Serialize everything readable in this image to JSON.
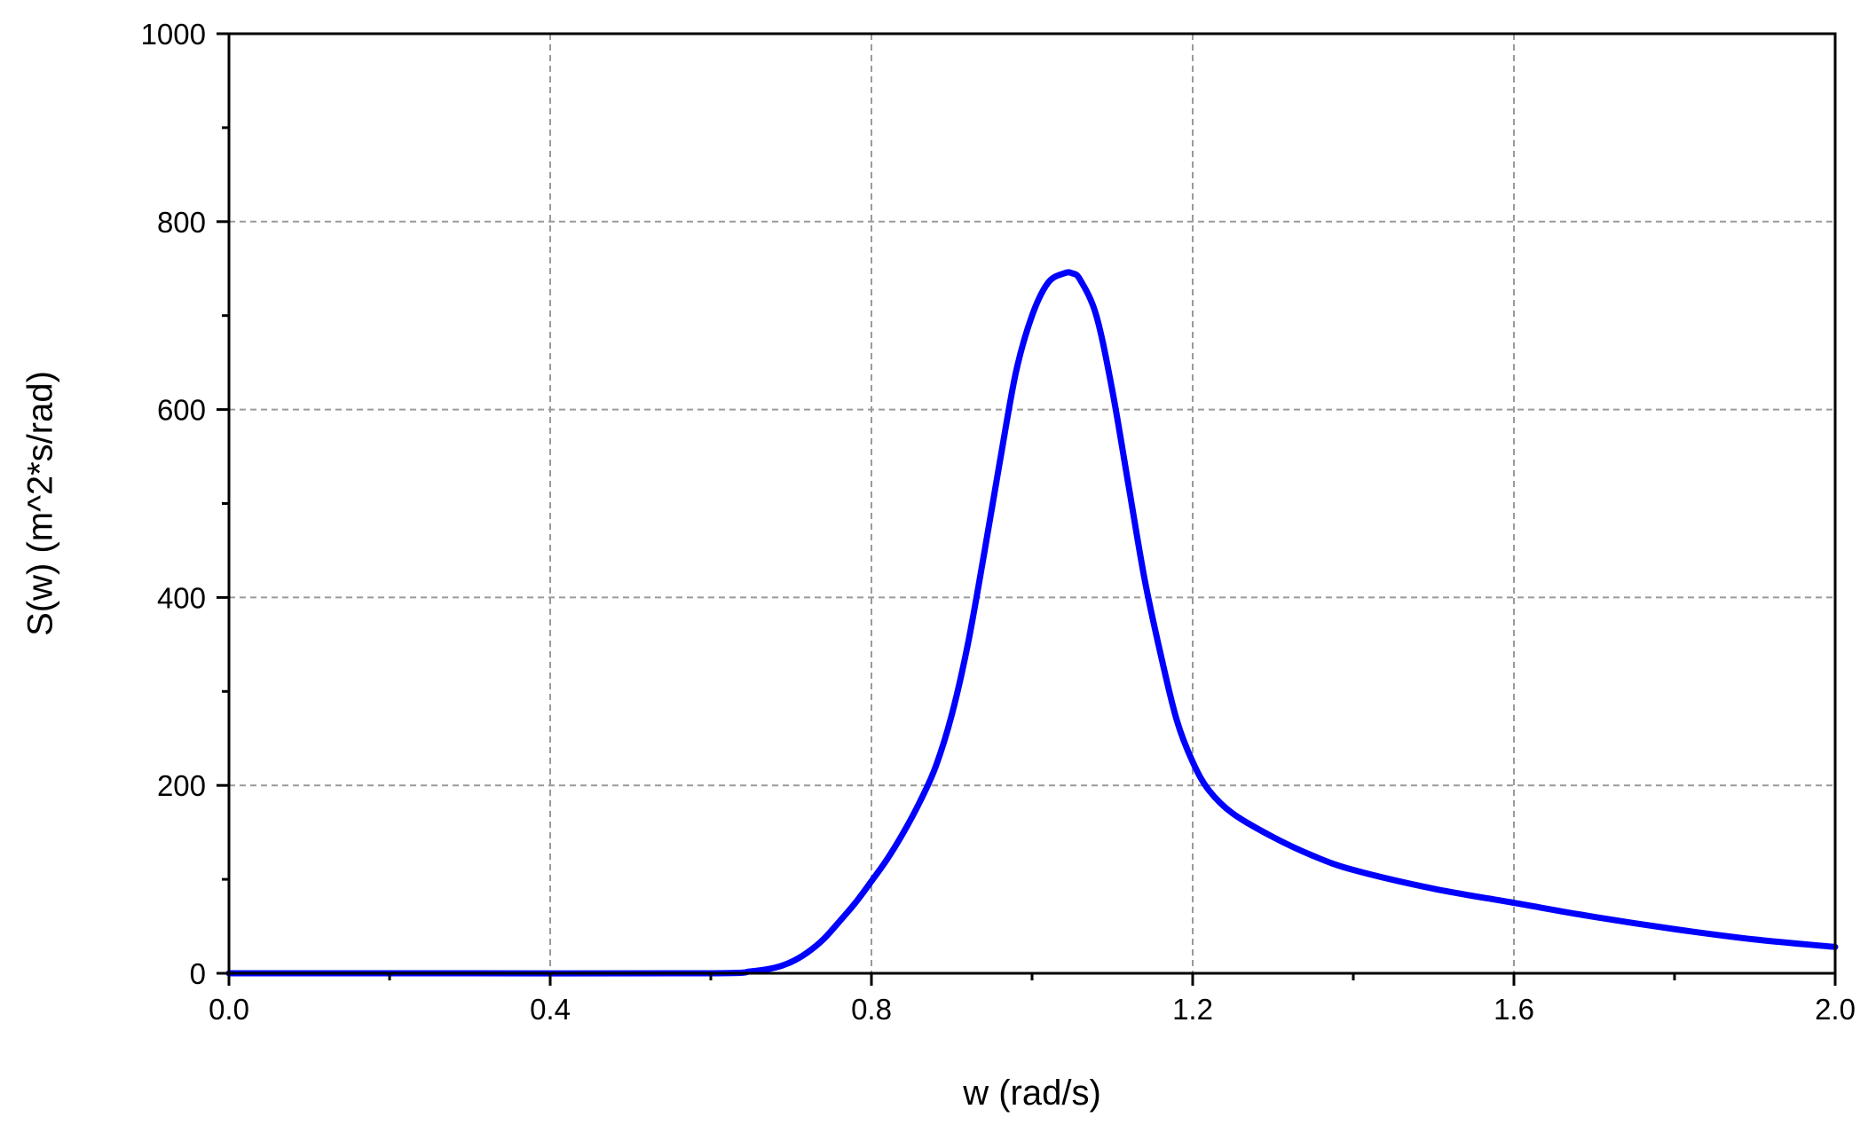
{
  "chart_data": {
    "type": "line",
    "title": "",
    "xlabel": "w (rad/s)",
    "ylabel": "S(w) (m^2*s/rad)",
    "xlim": [
      0.0,
      2.0
    ],
    "ylim": [
      0,
      1000
    ],
    "xticks": [
      "0.0",
      "0.4",
      "0.8",
      "1.2",
      "1.6",
      "2.0"
    ],
    "yticks": [
      "0",
      "200",
      "400",
      "600",
      "800",
      "1000"
    ],
    "grid": true,
    "legend": "none",
    "series": [
      {
        "color": "#0000ff",
        "x": [
          0.0,
          0.3,
          0.6,
          0.65,
          0.68,
          0.7,
          0.72,
          0.74,
          0.76,
          0.78,
          0.8,
          0.82,
          0.84,
          0.86,
          0.88,
          0.9,
          0.92,
          0.94,
          0.96,
          0.98,
          1.0,
          1.02,
          1.04,
          1.05,
          1.06,
          1.08,
          1.1,
          1.12,
          1.14,
          1.16,
          1.18,
          1.2,
          1.22,
          1.25,
          1.3,
          1.35,
          1.4,
          1.5,
          1.6,
          1.7,
          1.8,
          1.9,
          2.0
        ],
        "y": [
          0,
          0,
          0,
          2,
          6,
          12,
          22,
          36,
          55,
          75,
          98,
          122,
          150,
          182,
          220,
          275,
          350,
          445,
          545,
          640,
          700,
          735,
          745,
          745,
          738,
          700,
          620,
          520,
          420,
          340,
          270,
          225,
          195,
          170,
          145,
          125,
          110,
          90,
          75,
          60,
          47,
          36,
          28
        ]
      }
    ]
  }
}
